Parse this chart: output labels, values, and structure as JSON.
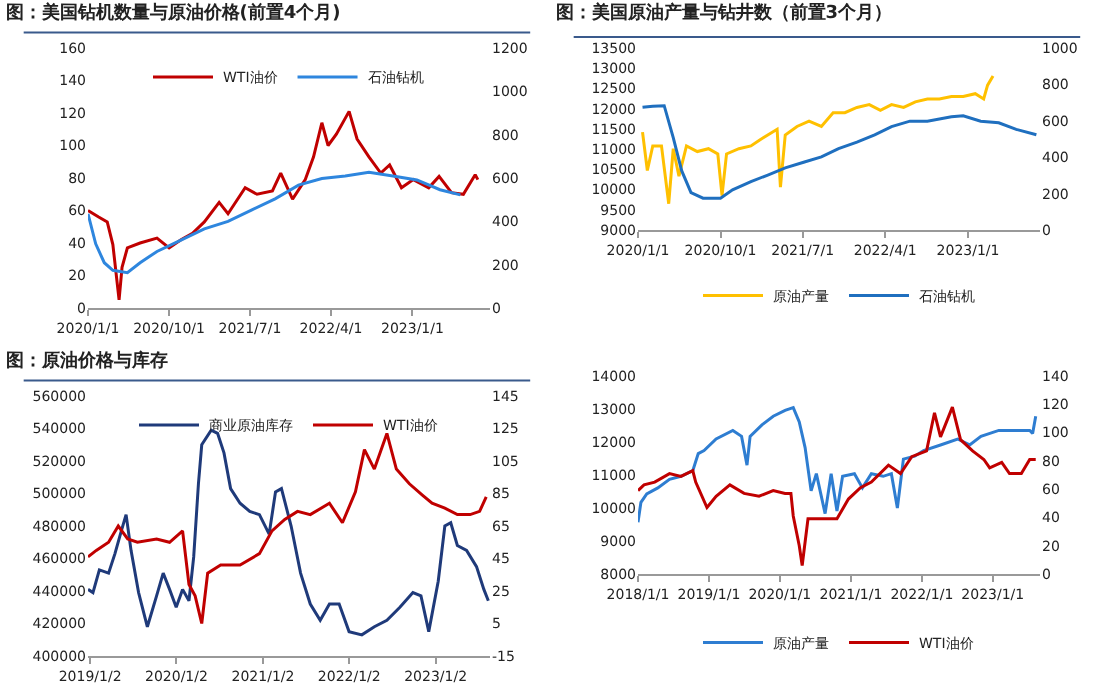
{
  "chart_data": [
    {
      "type": "line",
      "title": "图：美国钻机数量与原油价格(前置4个月)",
      "legend": "top",
      "xlim": [
        "2020-01-01",
        "2023-09-20"
      ],
      "xticks": [
        {
          "value": "2020-01-01",
          "label": "2020/1/1"
        },
        {
          "value": "2020-10-01",
          "label": "2020/10/1"
        },
        {
          "value": "2021-07-01",
          "label": "2021/7/1"
        },
        {
          "value": "2022-04-01",
          "label": "2022/4/1"
        },
        {
          "value": "2023-01-01",
          "label": "2023/1/1"
        }
      ],
      "ylim": [
        0,
        160
      ],
      "yticks": [
        0,
        20,
        40,
        60,
        80,
        100,
        120,
        140,
        160
      ],
      "y2lim": [
        0,
        1200
      ],
      "y2ticks": [
        0,
        200,
        400,
        600,
        800,
        1000,
        1200
      ],
      "series": [
        {
          "name": "WTI油价",
          "color": "#c00000",
          "x": [
            "2020-01-01",
            "2020-02-06",
            "2020-03-06",
            "2020-03-25",
            "2020-04-15",
            "2020-04-25",
            "2020-05-13",
            "2020-06-25",
            "2020-08-21",
            "2020-10-01",
            "2020-11-10",
            "2020-12-19",
            "2021-01-28",
            "2021-03-19",
            "2021-04-18",
            "2021-06-15",
            "2021-07-25",
            "2021-09-15",
            "2021-10-13",
            "2021-11-22",
            "2022-01-04",
            "2022-02-01",
            "2022-03-01",
            "2022-03-22",
            "2022-04-19",
            "2022-06-01",
            "2022-06-28",
            "2022-08-07",
            "2022-09-16",
            "2022-10-16",
            "2022-11-25",
            "2023-01-04",
            "2023-02-25",
            "2023-04-01",
            "2023-05-13",
            "2023-06-22",
            "2023-08-01",
            "2023-08-10"
          ],
          "values": [
            60,
            56,
            53,
            39,
            5,
            25,
            37,
            40,
            43,
            37,
            42,
            46,
            53,
            65,
            58,
            74,
            70,
            72,
            83,
            67,
            79,
            93,
            114,
            100,
            107,
            121,
            104,
            93,
            83,
            88,
            74,
            79,
            74,
            81,
            71,
            70,
            82,
            79
          ]
        },
        {
          "name": "石油钻机",
          "color": "#2e86de",
          "axis": "y2",
          "x": [
            "2020-01-01",
            "2020-01-27",
            "2020-02-25",
            "2020-03-25",
            "2020-05-13",
            "2020-06-25",
            "2020-08-21",
            "2020-11-10",
            "2021-01-28",
            "2021-04-18",
            "2021-07-06",
            "2021-09-24",
            "2021-12-12",
            "2022-03-01",
            "2022-05-19",
            "2022-08-07",
            "2022-10-27",
            "2023-01-16",
            "2023-04-04",
            "2023-06-12"
          ],
          "values": [
            435,
            296,
            209,
            174,
            163,
            209,
            261,
            313,
            365,
            400,
            452,
            504,
            567,
            598,
            609,
            626,
            609,
            591,
            546,
            522
          ]
        }
      ]
    },
    {
      "type": "line",
      "title": "图：美国原油产量与钻井数（前置3个月）",
      "legend": "bottom",
      "xlim": [
        "2020-01-01",
        "2023-08-28"
      ],
      "xticks": [
        {
          "value": "2020-01-01",
          "label": "2020/1/1"
        },
        {
          "value": "2020-10-01",
          "label": "2020/10/1"
        },
        {
          "value": "2021-07-01",
          "label": "2021/7/1"
        },
        {
          "value": "2022-04-01",
          "label": "2022/4/1"
        },
        {
          "value": "2023-01-01",
          "label": "2023/1/1"
        }
      ],
      "ylim": [
        9000,
        13500
      ],
      "yticks": [
        9000,
        9500,
        10000,
        10500,
        11000,
        11500,
        12000,
        12500,
        13000,
        13500
      ],
      "y2lim": [
        0,
        1000
      ],
      "y2ticks": [
        0,
        200,
        400,
        600,
        800,
        1000
      ],
      "series": [
        {
          "name": "原油产量",
          "color": "#ffc000",
          "x": [
            "2020-01-16",
            "2020-02-01",
            "2020-02-19",
            "2020-03-19",
            "2020-04-12",
            "2020-04-27",
            "2020-05-16",
            "2020-06-10",
            "2020-07-16",
            "2020-08-22",
            "2020-09-22",
            "2020-10-06",
            "2020-10-21",
            "2020-12-01",
            "2021-01-10",
            "2021-02-07",
            "2021-03-07",
            "2021-04-07",
            "2021-04-18",
            "2021-05-04",
            "2021-06-12",
            "2021-07-22",
            "2021-09-01",
            "2021-10-10",
            "2021-11-18",
            "2021-12-28",
            "2022-02-07",
            "2022-03-16",
            "2022-04-22",
            "2022-06-01",
            "2022-07-10",
            "2022-08-19",
            "2022-09-28",
            "2022-11-07",
            "2022-12-16",
            "2023-01-25",
            "2023-02-22",
            "2023-03-07",
            "2023-03-25"
          ],
          "values": [
            11420,
            10470,
            11080,
            11080,
            9650,
            11010,
            10330,
            11080,
            10940,
            11010,
            10880,
            9850,
            10880,
            11010,
            11080,
            11220,
            11350,
            11490,
            10060,
            11350,
            11560,
            11690,
            11560,
            11900,
            11900,
            12030,
            12100,
            11960,
            12100,
            12030,
            12170,
            12240,
            12240,
            12300,
            12300,
            12370,
            12240,
            12580,
            12810
          ]
        },
        {
          "name": "石油钻机",
          "color": "#1f6fbf",
          "axis": "y2",
          "x": [
            "2020-01-16",
            "2020-02-19",
            "2020-03-28",
            "2020-04-27",
            "2020-05-25",
            "2020-06-25",
            "2020-08-04",
            "2020-10-01",
            "2020-11-10",
            "2021-01-10",
            "2021-03-07",
            "2021-05-04",
            "2021-07-04",
            "2021-09-01",
            "2021-10-28",
            "2021-12-28",
            "2022-02-25",
            "2022-04-22",
            "2022-06-22",
            "2022-08-19",
            "2022-11-07",
            "2022-12-16",
            "2023-02-12",
            "2023-04-13",
            "2023-06-10",
            "2023-08-16"
          ],
          "values": [
            674,
            680,
            683,
            508,
            326,
            205,
            175,
            175,
            221,
            266,
            302,
            341,
            372,
            402,
            447,
            483,
            523,
            568,
            598,
            598,
            622,
            628,
            598,
            589,
            553,
            523
          ]
        }
      ]
    },
    {
      "type": "line",
      "title": "图：原油价格与库存",
      "legend": "top",
      "xlim": [
        "2018-12-24",
        "2023-08-20"
      ],
      "xticks": [
        {
          "value": "2019-01-02",
          "label": "2019/1/2"
        },
        {
          "value": "2020-01-02",
          "label": "2020/1/2"
        },
        {
          "value": "2021-01-02",
          "label": "2021/1/2"
        },
        {
          "value": "2022-01-02",
          "label": "2022/1/2"
        },
        {
          "value": "2023-01-02",
          "label": "2023/1/2"
        }
      ],
      "ylim": [
        400000,
        560000
      ],
      "yticks": [
        400000,
        420000,
        440000,
        460000,
        480000,
        500000,
        520000,
        540000,
        560000
      ],
      "y2lim": [
        -15,
        145
      ],
      "y2ticks": [
        -15,
        5,
        25,
        45,
        65,
        85,
        105,
        125,
        145
      ],
      "series": [
        {
          "name": "商业原油库存",
          "color": "#1f3a7a",
          "x": [
            "2018-12-24",
            "2019-01-14",
            "2019-02-10",
            "2019-03-21",
            "2019-04-17",
            "2019-05-14",
            "2019-06-03",
            "2019-06-24",
            "2019-07-26",
            "2019-09-01",
            "2019-10-10",
            "2019-11-07",
            "2019-12-04",
            "2020-01-01",
            "2020-01-28",
            "2020-02-24",
            "2020-03-15",
            "2020-04-04",
            "2020-04-18",
            "2020-05-28",
            "2020-06-24",
            "2020-07-21",
            "2020-08-18",
            "2020-09-27",
            "2020-11-07",
            "2020-12-18",
            "2021-01-28",
            "2021-02-24",
            "2021-03-21",
            "2021-05-01",
            "2021-06-10",
            "2021-07-21",
            "2021-09-01",
            "2021-10-10",
            "2021-11-20",
            "2022-01-01",
            "2022-02-24",
            "2022-04-18",
            "2022-06-10",
            "2022-08-04",
            "2022-09-28",
            "2022-11-01",
            "2022-12-04",
            "2023-01-13",
            "2023-02-10",
            "2023-03-07",
            "2023-04-04",
            "2023-05-13",
            "2023-06-24",
            "2023-07-25",
            "2023-08-13"
          ],
          "values": [
            441000,
            439000,
            453000,
            451000,
            463000,
            477000,
            487000,
            465000,
            439000,
            418000,
            437000,
            451000,
            441000,
            430000,
            441000,
            434000,
            461000,
            506000,
            530000,
            539000,
            537000,
            525000,
            503000,
            494000,
            489000,
            487000,
            475000,
            501000,
            503000,
            480000,
            451000,
            432000,
            422000,
            432000,
            432000,
            415000,
            413000,
            418000,
            422000,
            430000,
            439000,
            437000,
            415000,
            446000,
            480000,
            482000,
            468000,
            465000,
            455000,
            441000,
            434000
          ]
        },
        {
          "name": "WTI油价",
          "color": "#c00000",
          "axis": "y2",
          "x": [
            "2018-12-24",
            "2019-01-28",
            "2019-03-21",
            "2019-05-01",
            "2019-06-10",
            "2019-07-21",
            "2019-10-10",
            "2019-12-04",
            "2020-01-28",
            "2020-02-24",
            "2020-03-21",
            "2020-04-18",
            "2020-05-13",
            "2020-07-07",
            "2020-09-27",
            "2020-12-18",
            "2021-02-09",
            "2021-04-04",
            "2021-05-28",
            "2021-07-21",
            "2021-10-10",
            "2021-12-04",
            "2022-01-28",
            "2022-03-07",
            "2022-04-18",
            "2022-06-10",
            "2022-07-20",
            "2022-09-13",
            "2022-11-07",
            "2022-12-18",
            "2023-02-10",
            "2023-04-04",
            "2023-05-28",
            "2023-07-07",
            "2023-08-04"
          ],
          "values": [
            46,
            50,
            55,
            65,
            57,
            55,
            57,
            55,
            62,
            29,
            22,
            5,
            36,
            41,
            41,
            48,
            62,
            69,
            74,
            72,
            79,
            67,
            86,
            112,
            100,
            122,
            100,
            91,
            84,
            79,
            76,
            72,
            72,
            74,
            83
          ]
        }
      ]
    },
    {
      "type": "line",
      "legend": "bottom",
      "xlim": [
        "2018-01-01",
        "2023-09-01"
      ],
      "xticks": [
        {
          "value": "2018-01-01",
          "label": "2018/1/1"
        },
        {
          "value": "2019-01-01",
          "label": "2019/1/1"
        },
        {
          "value": "2020-01-01",
          "label": "2020/1/1"
        },
        {
          "value": "2021-01-01",
          "label": "2021/1/1"
        },
        {
          "value": "2022-01-01",
          "label": "2022/1/1"
        },
        {
          "value": "2023-01-01",
          "label": "2023/1/1"
        }
      ],
      "ylim": [
        8000,
        14000
      ],
      "yticks": [
        8000,
        9000,
        10000,
        11000,
        12000,
        13000,
        14000
      ],
      "y2lim": [
        0,
        140
      ],
      "y2ticks": [
        0,
        20,
        40,
        60,
        80,
        100,
        120,
        140
      ],
      "series": [
        {
          "name": "原油产量",
          "color": "#2e7dd1",
          "x": [
            "2018-01-01",
            "2018-01-16",
            "2018-02-15",
            "2018-04-13",
            "2018-06-12",
            "2018-08-10",
            "2018-10-10",
            "2018-11-07",
            "2018-12-07",
            "2019-02-07",
            "2019-05-04",
            "2019-06-18",
            "2019-07-16",
            "2019-08-01",
            "2019-10-01",
            "2019-11-28",
            "2020-01-28",
            "2020-03-10",
            "2020-04-10",
            "2020-05-10",
            "2020-06-10",
            "2020-07-07",
            "2020-08-21",
            "2020-09-21",
            "2020-10-21",
            "2020-11-19",
            "2021-01-19",
            "2021-03-01",
            "2021-04-16",
            "2021-06-16",
            "2021-07-28",
            "2021-08-28",
            "2021-09-28",
            "2021-11-25",
            "2022-01-10",
            "2022-04-07",
            "2022-07-04",
            "2022-09-04",
            "2022-11-01",
            "2023-02-01",
            "2023-04-28",
            "2023-07-10",
            "2023-07-25",
            "2023-08-10"
          ],
          "values": [
            9570,
            10170,
            10430,
            10610,
            10870,
            10960,
            11130,
            11650,
            11740,
            12090,
            12350,
            12170,
            11300,
            12170,
            12520,
            12780,
            12960,
            13040,
            12610,
            11830,
            10520,
            11040,
            9830,
            11040,
            9910,
            10960,
            11040,
            10610,
            11040,
            10960,
            11040,
            10000,
            11480,
            11570,
            11740,
            11910,
            12090,
            11910,
            12170,
            12350,
            12350,
            12350,
            12260,
            12780
          ]
        },
        {
          "name": "WTI油价",
          "color": "#c00000",
          "axis": "y2",
          "x": [
            "2018-01-01",
            "2018-02-01",
            "2018-03-28",
            "2018-06-12",
            "2018-08-10",
            "2018-10-10",
            "2018-10-25",
            "2018-12-22",
            "2019-02-07",
            "2019-04-19",
            "2019-07-01",
            "2019-09-16",
            "2019-11-28",
            "2020-01-28",
            "2020-02-27",
            "2020-03-10",
            "2020-04-10",
            "2020-04-25",
            "2020-05-25",
            "2020-08-21",
            "2020-10-21",
            "2020-12-19",
            "2021-02-19",
            "2021-04-16",
            "2021-07-13",
            "2021-09-13",
            "2021-11-10",
            "2022-01-25",
            "2022-03-07",
            "2022-04-07",
            "2022-06-07",
            "2022-07-19",
            "2022-09-19",
            "2022-11-16",
            "2022-12-16",
            "2023-02-16",
            "2023-03-28",
            "2023-05-28",
            "2023-07-10",
            "2023-08-10"
          ],
          "values": [
            59,
            63,
            65,
            71,
            69,
            73,
            65,
            47,
            55,
            63,
            57,
            55,
            59,
            57,
            57,
            41,
            20,
            6,
            39,
            39,
            39,
            53,
            61,
            65,
            77,
            71,
            83,
            87,
            114,
            97,
            118,
            95,
            87,
            81,
            75,
            79,
            71,
            71,
            81,
            81
          ]
        }
      ]
    }
  ]
}
